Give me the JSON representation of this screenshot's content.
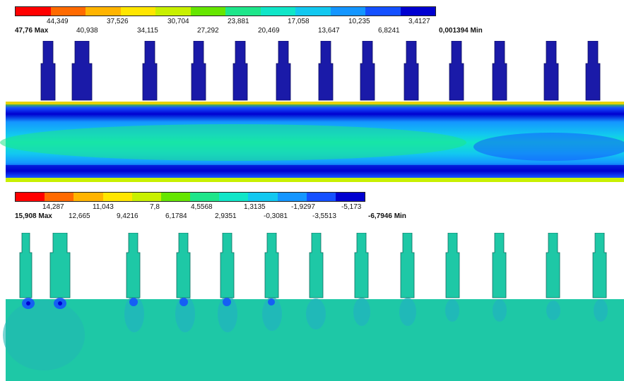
{
  "plots": [
    {
      "max_label": "47,76 Max",
      "min_label": "0,001394 Min",
      "upper_ticks": [
        "44,349",
        "37,526",
        "30,704",
        "23,881",
        "17,058",
        "10,235",
        "3,4127"
      ],
      "lower_ticks": [
        "40,938",
        "34,115",
        "27,292",
        "20,469",
        "13,647",
        "6,8241"
      ],
      "colors": [
        "#ff0000",
        "#ff6a00",
        "#ffb400",
        "#ffe600",
        "#c8f000",
        "#66e600",
        "#1ee68a",
        "#10e6c8",
        "#12c8f0",
        "#1496ff",
        "#1450ff",
        "#0000d0"
      ]
    },
    {
      "max_label": "15,908 Max",
      "min_label": "-6,7946 Min",
      "upper_ticks": [
        "14,287",
        "11,043",
        "7,8",
        "4,5568",
        "1,3135",
        "-1,9297",
        "-5,173"
      ],
      "lower_ticks": [
        "12,665",
        "9,4216",
        "6,1784",
        "2,9351",
        "-0,3081",
        "-3,5513"
      ],
      "colors": [
        "#ff0000",
        "#ff6a00",
        "#ffb400",
        "#ffe600",
        "#c8f000",
        "#66e600",
        "#1ee68a",
        "#10e6c8",
        "#12c8f0",
        "#1496ff",
        "#1450ff",
        "#0000d0"
      ]
    }
  ]
}
